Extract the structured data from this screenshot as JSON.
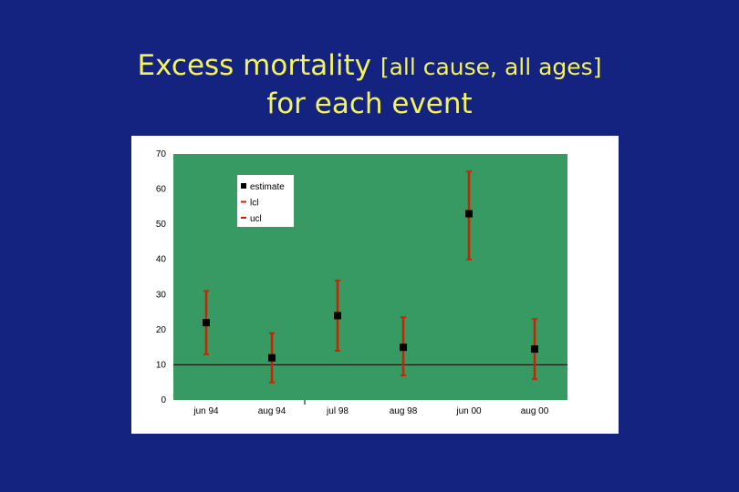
{
  "slide": {
    "title_line1_main": "Excess mortality ",
    "title_line1_bracket": "[all cause, all ages]",
    "title_line2": "for each event"
  },
  "colors": {
    "background": "#13237f",
    "title": "#f5f25a",
    "plot_area": "#389a63",
    "point": "#000000",
    "error_bar": "#cc2200"
  },
  "chart_data": {
    "type": "scatter",
    "title": "",
    "xlabel": "",
    "ylabel": "",
    "categories": [
      "jun 94",
      "aug 94",
      "jul 98",
      "aug 98",
      "jun 00",
      "aug 00"
    ],
    "ylim": [
      0,
      70
    ],
    "yticks": [
      0,
      10,
      20,
      30,
      40,
      50,
      60,
      70
    ],
    "reference_line_y": 10,
    "grid": false,
    "legend_position": "top-left",
    "legend": [
      "estimate",
      "lcl",
      "ucl"
    ],
    "series": [
      {
        "name": "estimate",
        "values": [
          22,
          12,
          24,
          15,
          53,
          14.5
        ]
      },
      {
        "name": "lcl",
        "values": [
          13,
          5,
          14,
          7,
          40,
          6
        ]
      },
      {
        "name": "ucl",
        "values": [
          31,
          19,
          34,
          23.5,
          65,
          23
        ]
      }
    ]
  }
}
